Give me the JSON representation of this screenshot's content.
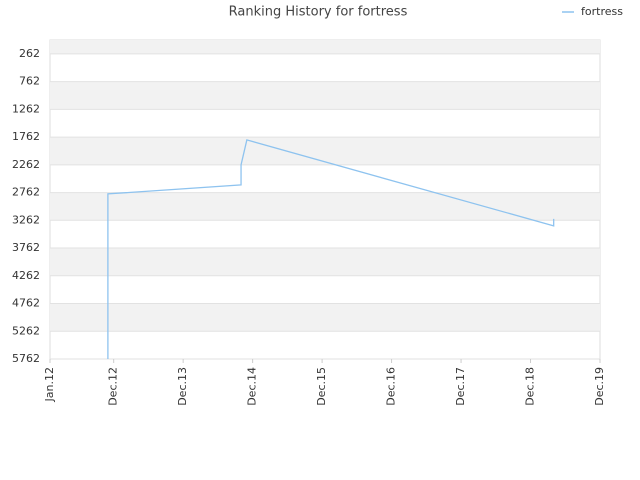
{
  "chart_data": {
    "type": "line",
    "title": "Ranking History for fortress",
    "x": [
      "2012-11",
      "2012-11",
      "2014-10",
      "2014-10",
      "2014-11",
      "2019-04",
      "2019-04"
    ],
    "series": [
      {
        "name": "fortress",
        "color": "#8ec3ef",
        "values": [
          5762,
          2786,
          2624,
          2263,
          1813,
          3363,
          3237
        ]
      }
    ],
    "xlim": [
      "2012-01",
      "2019-12"
    ],
    "xticks": [
      {
        "value": "2012-01",
        "label": "Jan.12"
      },
      {
        "value": "2012-12",
        "label": "Dec.12"
      },
      {
        "value": "2013-12",
        "label": "Dec.13"
      },
      {
        "value": "2014-12",
        "label": "Dec.14"
      },
      {
        "value": "2015-12",
        "label": "Dec.15"
      },
      {
        "value": "2016-12",
        "label": "Dec.16"
      },
      {
        "value": "2017-12",
        "label": "Dec.17"
      },
      {
        "value": "2018-12",
        "label": "Dec.18"
      },
      {
        "value": "2019-12",
        "label": "Dec.19"
      }
    ],
    "ylim": [
      5762,
      12
    ],
    "yticks": [
      262,
      762,
      1262,
      1762,
      2262,
      2762,
      3262,
      3762,
      4262,
      4762,
      5262,
      5762
    ],
    "grid": true,
    "legend": "top-right"
  }
}
